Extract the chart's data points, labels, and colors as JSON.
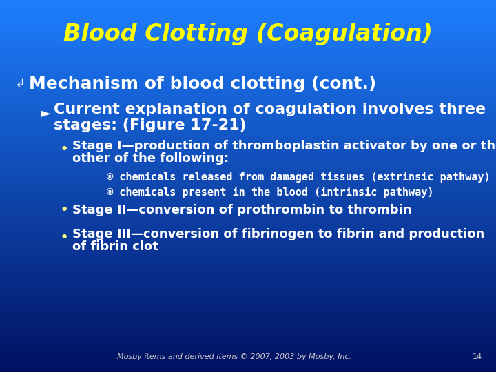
{
  "title": "Blood Clotting (Coagulation)",
  "title_color": "#FFFF00",
  "title_fontsize": 24,
  "bg_color_top": "#1E7FFF",
  "bg_color_bottom": "#001060",
  "mechanism_bullet": "↳",
  "mechanism_text": "Mechanism of blood clotting (cont.)",
  "mechanism_color": "#FFFFFF",
  "mechanism_fontsize": 18,
  "current_arrow": "►",
  "current_line1": "Current explanation of coagulation involves three",
  "current_line2": "stages: (Figure 17-21)",
  "current_color": "#FFFFFF",
  "current_fontsize": 16,
  "stage1_line1": "Stage I—production of thromboplastin activator by one or the",
  "stage1_line2": "other of the following:",
  "stage2_text": "Stage II—conversion of prothrombin to thrombin",
  "stage3_line1": "Stage III—conversion of fibrinogen to fibrin and production",
  "stage3_line2": "of fibrin clot",
  "body_color": "#FFFFFF",
  "body_fontsize": 13,
  "sub1": "® chemicals released from damaged tissues (extrinsic pathway)",
  "sub2": "® chemicals present in the blood (intrinsic pathway)",
  "sub_color": "#FFFFFF",
  "sub_fontsize": 11,
  "bullet_dot": "•",
  "footer": "Mosby items and derived items © 2007, 2003 by Mosby, Inc.",
  "footer_color": "#CCCCCC",
  "footer_fontsize": 8,
  "page_num": "14"
}
